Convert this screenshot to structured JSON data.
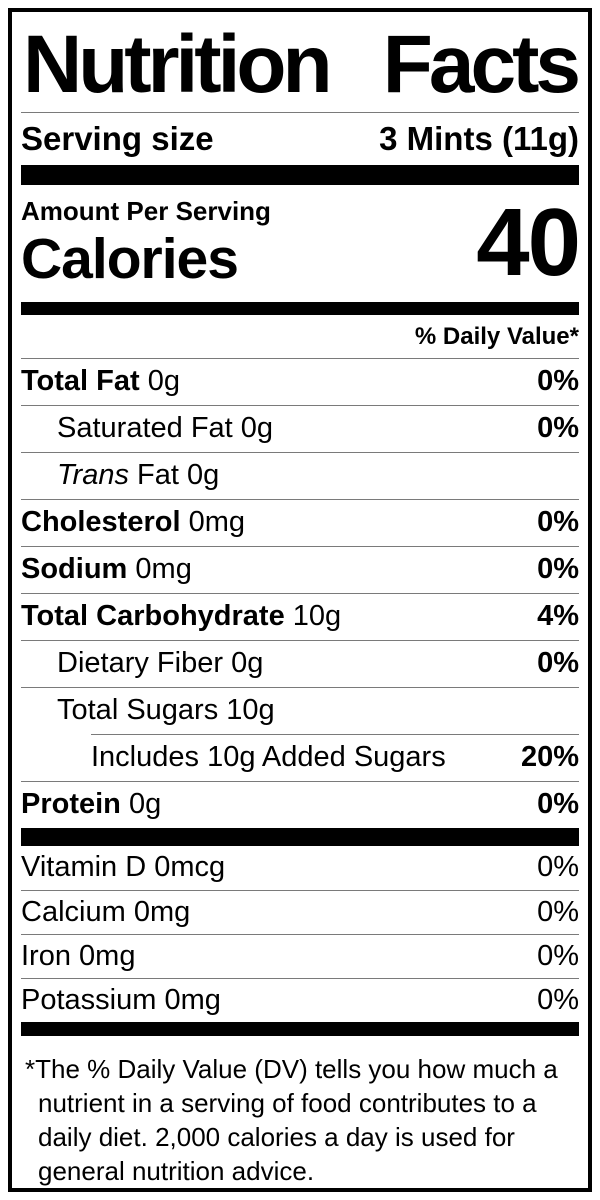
{
  "title": {
    "word1": "Nutrition",
    "word2": "Facts"
  },
  "serving_size": {
    "label": "Serving size",
    "value": "3 Mints (11g)"
  },
  "calories_section": {
    "amount_per_serving": "Amount Per Serving",
    "label": "Calories",
    "value": "40"
  },
  "daily_value_header": "% Daily Value*",
  "nutrients": [
    {
      "name": "Total Fat",
      "amount": "0g",
      "dv": "0%"
    },
    {
      "name": "Saturated Fat",
      "amount": "0g",
      "dv": "0%"
    },
    {
      "italic": "Trans",
      "name": "Fat",
      "amount": "0g",
      "dv": ""
    },
    {
      "name": "Cholesterol",
      "amount": "0mg",
      "dv": "0%"
    },
    {
      "name": "Sodium",
      "amount": "0mg",
      "dv": "0%"
    },
    {
      "name": "Total Carbohydrate",
      "amount": "10g",
      "dv": "4%"
    },
    {
      "name": "Dietary Fiber",
      "amount": "0g",
      "dv": "0%"
    },
    {
      "name": "Total Sugars",
      "amount": "10g",
      "dv": ""
    },
    {
      "name": "Includes 10g Added Sugars",
      "amount": "",
      "dv": "20%"
    },
    {
      "name": "Protein",
      "amount": "0g",
      "dv": "0%"
    }
  ],
  "vitamins": [
    {
      "name": "Vitamin D",
      "amount": "0mcg",
      "dv": "0%"
    },
    {
      "name": "Calcium",
      "amount": "0mg",
      "dv": "0%"
    },
    {
      "name": "Iron",
      "amount": "0mg",
      "dv": "0%"
    },
    {
      "name": "Potassium",
      "amount": "0mg",
      "dv": "0%"
    }
  ],
  "footnote": {
    "marker": "*",
    "text": "The % Daily Value (DV) tells you how much a nutrient in a serving of food contributes to a daily diet. 2,000 calories a day is used for general nutrition advice."
  }
}
